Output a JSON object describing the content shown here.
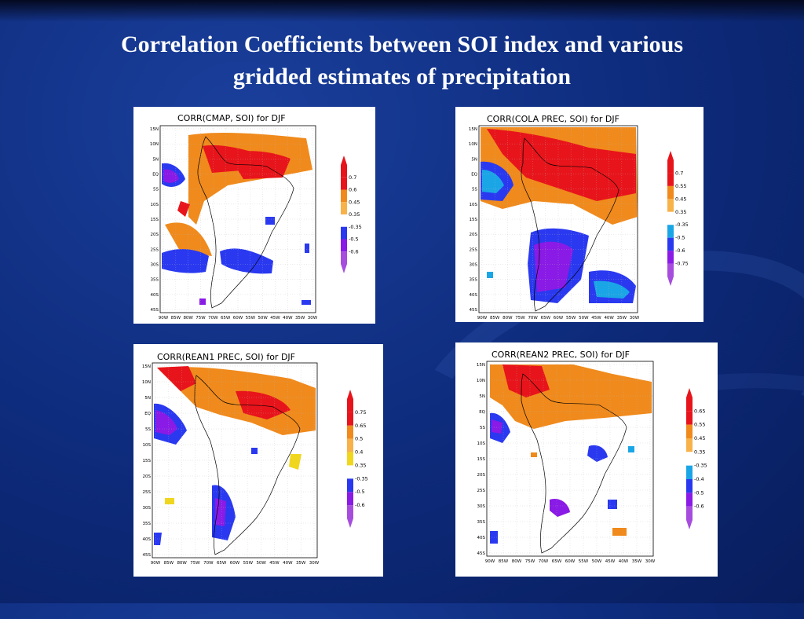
{
  "slide": {
    "title_line1": "Correlation Coefficients between SOI index and various",
    "title_line2": "gridded estimates of precipitation"
  },
  "panels": [
    {
      "title": "CORR(CMAP, SOI)   for DJF",
      "lat_labels": [
        "15N",
        "10N",
        "5N",
        "EQ",
        "5S",
        "10S",
        "15S",
        "20S",
        "25S",
        "30S",
        "35S",
        "40S",
        "45S"
      ],
      "lon_labels": [
        "90W",
        "85W",
        "80W",
        "75W",
        "70W",
        "65W",
        "60W",
        "55W",
        "50W",
        "45W",
        "40W",
        "35W",
        "30W"
      ],
      "legend": [
        "0.7",
        "0.6",
        "0.45",
        "0.35",
        "-0.35",
        "-0.5",
        "-0.6"
      ]
    },
    {
      "title": "CORR(COLA PREC, SOI)   for DJF",
      "lat_labels": [
        "15N",
        "10N",
        "5N",
        "EQ",
        "5S",
        "10S",
        "15S",
        "20S",
        "25S",
        "30S",
        "35S",
        "40S",
        "45S"
      ],
      "lon_labels": [
        "90W",
        "85W",
        "80W",
        "75W",
        "70W",
        "65W",
        "60W",
        "55W",
        "50W",
        "45W",
        "40W",
        "35W",
        "30W"
      ],
      "legend": [
        "0.7",
        "0.55",
        "0.45",
        "0.35",
        "-0.35",
        "-0.5",
        "-0.6",
        "-0.75"
      ]
    },
    {
      "title": "CORR(REAN1 PREC, SOI)   for DJF",
      "lat_labels": [
        "15N",
        "10N",
        "5N",
        "EQ",
        "5S",
        "10S",
        "15S",
        "20S",
        "25S",
        "30S",
        "35S",
        "40S",
        "45S"
      ],
      "lon_labels": [
        "90W",
        "85W",
        "80W",
        "75W",
        "70W",
        "65W",
        "60W",
        "55W",
        "50W",
        "45W",
        "40W",
        "35W",
        "30W"
      ],
      "legend": [
        "0.75",
        "0.65",
        "0.5",
        "0.4",
        "0.35",
        "-0.35",
        "-0.5",
        "-0.6"
      ]
    },
    {
      "title": "CORR(REAN2 PREC, SOI)   for DJF",
      "lat_labels": [
        "15N",
        "10N",
        "5N",
        "EQ",
        "5S",
        "10S",
        "15S",
        "20S",
        "25S",
        "30S",
        "35S",
        "40S",
        "45S"
      ],
      "lon_labels": [
        "90W",
        "85W",
        "80W",
        "75W",
        "70W",
        "65W",
        "60W",
        "55W",
        "50W",
        "45W",
        "40W",
        "35W",
        "30W"
      ],
      "legend": [
        "0.65",
        "0.55",
        "0.45",
        "0.35",
        "-0.35",
        "-0.4",
        "-0.5",
        "-0.6"
      ]
    }
  ],
  "colors": {
    "red": "#e8141b",
    "orange": "#f08a1c",
    "light_orange": "#f7b24a",
    "yellow": "#f0d71e",
    "cyan": "#1aa6e6",
    "blue": "#2a39f0",
    "purple": "#8a1ae6",
    "violet": "#a64dde"
  }
}
